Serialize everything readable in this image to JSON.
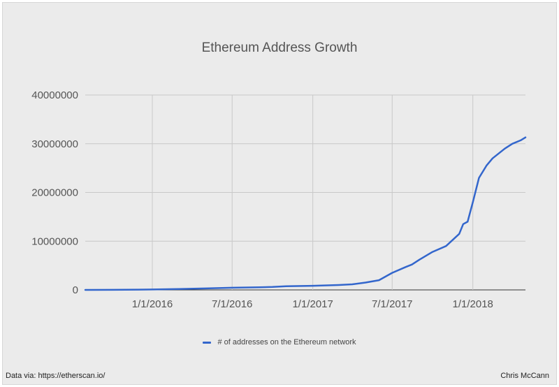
{
  "chart_data": {
    "type": "line",
    "title": "Ethereum Address Growth",
    "xlabel": "",
    "ylabel": "",
    "x_ticks": [
      "1/1/2016",
      "7/1/2016",
      "1/1/2017",
      "7/1/2017",
      "1/1/2018"
    ],
    "y_ticks": [
      "0",
      "10000000",
      "20000000",
      "30000000",
      "40000000"
    ],
    "ylim": [
      0,
      40000000
    ],
    "xlim": [
      "2015-08-01",
      "2018-05-01"
    ],
    "grid": true,
    "legend_position": "bottom",
    "series": [
      {
        "name": "# of addresses on the Ethereum network",
        "color": "#3366cc",
        "x": [
          "2015-08-01",
          "2015-10-01",
          "2015-12-01",
          "2016-01-01",
          "2016-03-01",
          "2016-05-01",
          "2016-07-01",
          "2016-09-01",
          "2016-10-01",
          "2016-11-01",
          "2017-01-01",
          "2017-03-01",
          "2017-04-01",
          "2017-05-01",
          "2017-06-01",
          "2017-07-01",
          "2017-08-01",
          "2017-08-15",
          "2017-09-01",
          "2017-10-01",
          "2017-11-01",
          "2017-12-01",
          "2017-12-10",
          "2017-12-20",
          "2018-01-01",
          "2018-01-15",
          "2018-02-01",
          "2018-02-15",
          "2018-03-01",
          "2018-03-15",
          "2018-04-01",
          "2018-04-20",
          "2018-05-01"
        ],
        "values": [
          0,
          20000,
          60000,
          90000,
          180000,
          300000,
          450000,
          550000,
          600000,
          750000,
          850000,
          1000000,
          1150000,
          1500000,
          2000000,
          3500000,
          4700000,
          5200000,
          6200000,
          7800000,
          9000000,
          11500000,
          13500000,
          14000000,
          18000000,
          23000000,
          25500000,
          27000000,
          28000000,
          29000000,
          30000000,
          30700000,
          31300000
        ]
      }
    ]
  },
  "footer": {
    "source": "Data via: https://etherscan.io/",
    "author": "Chris McCann"
  }
}
